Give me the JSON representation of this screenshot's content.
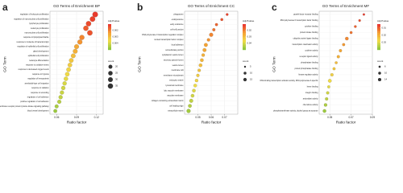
{
  "chart_data": [
    {
      "type": "dotplot",
      "panel": "a",
      "title": "GO Terms of Enrichment BP",
      "xlabel": "Ratio factor",
      "ylabel": "GO Term",
      "categories": [
        "regulation of leukocyte proliferation",
        "regulation of mononuclear cell proliferation",
        "lymphocyte proliferation",
        "leukocyte proliferation",
        "mononuclear cell proliferation",
        "response to lipopolysaccharide",
        "response to molecule of bacterial origin",
        "regulation of epithelial cell proliferation",
        "gland development",
        "epithelial cell proliferation",
        "leukocyte differentiation",
        "response to oxidative stress",
        "response to decreased oxygen levels",
        "response to hypoxia",
        "regulation of hemopoiesis",
        "ameboidal-type cell migration",
        "response to radiation",
        "response to wounding",
        "regulation of cell adhesion",
        "positive regulation of cell adhesion",
        "transmembrane receptor protein tyrosine kinase signaling pathway",
        "blood vessel development"
      ],
      "values": [
        0.118,
        0.114,
        0.108,
        0.104,
        0.11,
        0.098,
        0.095,
        0.09,
        0.088,
        0.085,
        0.082,
        0.08,
        0.078,
        0.076,
        0.074,
        0.072,
        0.07,
        0.068,
        0.066,
        0.064,
        0.06,
        0.058
      ],
      "pvalues": [
        0.0011,
        0.0012,
        0.0013,
        0.0015,
        0.0014,
        0.002,
        0.0022,
        0.0025,
        0.0027,
        0.003,
        0.0032,
        0.0033,
        0.0035,
        0.0036,
        0.0038,
        0.004,
        0.0041,
        0.0042,
        0.0043,
        0.0044,
        0.0046,
        0.0048
      ],
      "counts": [
        38,
        36,
        34,
        33,
        35,
        31,
        30,
        28,
        27,
        26,
        25,
        24,
        24,
        23,
        22,
        21,
        21,
        20,
        20,
        19,
        18,
        17
      ],
      "xlim": [
        0.05,
        0.13
      ],
      "xticks": [
        0.06,
        0.09,
        0.12
      ],
      "color_title": "Adj.Pvalue",
      "clim": [
        0.001,
        0.005
      ],
      "cticks": [
        0.002,
        0.003,
        0.004
      ],
      "size_title": "count",
      "size_ticks": [
        20,
        25,
        30,
        35
      ]
    },
    {
      "type": "dotplot",
      "panel": "b",
      "title": "GO Terms of Enrichment CC",
      "xlabel": "Ratio factor",
      "ylabel": "GO Term",
      "categories": [
        "phagosome",
        "endolysosome",
        "early endosome",
        "cell-cell junction",
        "RNA polymerase II transcription regulator complex",
        "nuclear transcription factor complex",
        "focal adhesion",
        "cell-substrate junction",
        "cytoplasmic vesicle lumen",
        "secretory granule lumen",
        "vesicle lumen",
        "membrane raft",
        "membrane microdomain",
        "endocytic vesicle",
        "lysosomal membrane",
        "lytic vacuole membrane",
        "vacuolar membrane",
        "collagen-containing extracellular matrix",
        "cell leading edge",
        "extracellular matrix"
      ],
      "values": [
        0.072,
        0.068,
        0.064,
        0.062,
        0.06,
        0.058,
        0.056,
        0.055,
        0.054,
        0.053,
        0.052,
        0.051,
        0.05,
        0.049,
        0.048,
        0.047,
        0.046,
        0.045,
        0.044,
        0.043
      ],
      "pvalues": [
        0.012,
        0.014,
        0.016,
        0.018,
        0.02,
        0.022,
        0.024,
        0.025,
        0.027,
        0.028,
        0.03,
        0.031,
        0.033,
        0.035,
        0.037,
        0.039,
        0.041,
        0.043,
        0.045,
        0.047
      ],
      "counts": [
        8,
        9,
        10,
        11,
        19,
        12,
        17,
        17,
        13,
        14,
        15,
        12,
        12,
        13,
        14,
        14,
        15,
        18,
        16,
        20
      ],
      "xlim": [
        0.04,
        0.08
      ],
      "xticks": [
        0.05,
        0.06,
        0.07
      ],
      "color_title": "Adj.Pvalue",
      "clim": [
        0.01,
        0.05
      ],
      "cticks": [
        0.02,
        0.03,
        0.04
      ],
      "size_title": "count",
      "size_ticks": [
        5,
        10,
        15
      ]
    },
    {
      "type": "dotplot",
      "panel": "c",
      "title": "GO Terms of Enrichment MF",
      "xlabel": "Ratio factor",
      "ylabel": "GO Term",
      "categories": [
        "growth factor receptor binding",
        "RNA polymerase II transcription factor binding",
        "cytokine binding",
        "protein kinase binding",
        "ubiquitin protein ligase binding",
        "transcription coactivator activity",
        "cytokine activity",
        "receptor ligand activity",
        "phosphatase binding",
        "protein phosphatase binding",
        "kinase regulator activity",
        "DNA-binding transcription activator activity, RNA polymerase II-specific",
        "heme binding",
        "integrin binding",
        "antioxidant activity",
        "chemokine activity",
        "phosphotransferase activity, alcohol group as acceptor"
      ],
      "values": [
        0.082,
        0.078,
        0.074,
        0.07,
        0.066,
        0.063,
        0.06,
        0.058,
        0.056,
        0.054,
        0.052,
        0.05,
        0.049,
        0.048,
        0.047,
        0.046,
        0.045
      ],
      "pvalues": [
        0.006,
        0.008,
        0.01,
        0.012,
        0.014,
        0.016,
        0.018,
        0.02,
        0.022,
        0.024,
        0.026,
        0.028,
        0.03,
        0.032,
        0.034,
        0.036,
        0.038
      ],
      "counts": [
        6,
        7,
        8,
        9,
        14,
        10,
        11,
        11,
        9,
        10,
        12,
        16,
        10,
        11,
        12,
        13,
        15
      ],
      "xlim": [
        0.04,
        0.09
      ],
      "xticks": [
        0.05,
        0.07,
        0.09
      ],
      "color_title": "Adj.Pvalue",
      "clim": [
        0.005,
        0.04
      ],
      "cticks": [
        0.01,
        0.02,
        0.03
      ],
      "size_title": "count",
      "size_ticks": [
        6,
        10,
        14
      ]
    }
  ]
}
